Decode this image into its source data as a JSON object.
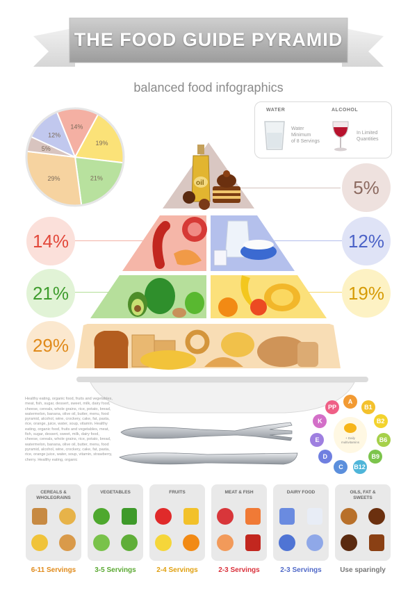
{
  "header": {
    "title": "THE FOOD GUIDE PYRAMID",
    "subtitle": "balanced food infographics"
  },
  "colors": {
    "cereals": "#f0c98f",
    "vegetables": "#a7d98d",
    "fruits": "#f8d957",
    "meat": "#f2a49a",
    "dairy": "#a9b6e6",
    "sweets": "#cfb8b3"
  },
  "pie": {
    "slices": [
      {
        "label": "14%",
        "value": 14,
        "color": "#f4b0a3"
      },
      {
        "label": "19%",
        "value": 19,
        "color": "#fbe278"
      },
      {
        "label": "21%",
        "value": 21,
        "color": "#b8e19e"
      },
      {
        "label": "29%",
        "value": 29,
        "color": "#f6d3a0"
      },
      {
        "label": "5%",
        "value": 5,
        "color": "#d8c4bf"
      },
      {
        "label": "12%",
        "value": 12,
        "color": "#c1c8ee"
      }
    ]
  },
  "water_alcohol": {
    "water_label": "WATER",
    "water_note_1": "Water",
    "water_note_2": "Minimum",
    "water_note_3": "of 8 Servings",
    "alcohol_label": "ALCOHOL",
    "alcohol_note_1": "In Limited",
    "alcohol_note_2": "Quantities"
  },
  "percentages": {
    "sweets": "5%",
    "meat": "14%",
    "dairy": "12%",
    "vegetables": "21%",
    "fruits": "19%",
    "cereals": "29%"
  },
  "pyramid": {
    "oil_label": "oil"
  },
  "blurb": "Healthy eating, organic food, fruits and vegetables, meat, fish, sugar, dessert, sweet, milk, dairy food, cheese, cereals, whole grains, rice, potato, bread, watermelon, banana, olive oil, butter, menu, food pyramid, alcohol, wine, crockery, cake, fat, pasta, rice, orange, juice, water, soup, vitamin. Healthy eating, organic food, fruits and vegetables, meat, fish, sugar, dessert, sweet, milk, dairy food, cheese, cereals, whole grains, rice, potato, bread, watermelon, banana, olive oil, butter, menu, food pyramid, alcohol, wine, crockery, cake, fat, pasta, rice, orange juice, water, soup, vitamin, strawberry, cherry. Healthy eating, organic",
  "vitamins": {
    "center_note_1": "+ Daily",
    "center_note_2": "multivitamins",
    "items": [
      {
        "label": "A",
        "color": "#f29a33"
      },
      {
        "label": "B1",
        "color": "#f3c12d"
      },
      {
        "label": "B2",
        "color": "#f3d32d"
      },
      {
        "label": "B6",
        "color": "#a6d04a"
      },
      {
        "label": "B9",
        "color": "#7cc44c"
      },
      {
        "label": "B12",
        "color": "#4fb5d9"
      },
      {
        "label": "C",
        "color": "#5b8fdc"
      },
      {
        "label": "D",
        "color": "#6f7fe0"
      },
      {
        "label": "E",
        "color": "#9e7fe0"
      },
      {
        "label": "K",
        "color": "#d36fc8"
      },
      {
        "label": "PP",
        "color": "#ef5f86"
      }
    ]
  },
  "groups": [
    {
      "title": "CEREALS &\nWHOLEGRAINS",
      "servings": "6-11 Servings",
      "color": "#e08a1a"
    },
    {
      "title": "VEGETABLES",
      "servings": "3-5 Servings",
      "color": "#5aa832"
    },
    {
      "title": "FRUITS",
      "servings": "2-4 Servings",
      "color": "#e0a010"
    },
    {
      "title": "MEAT  & FISH",
      "servings": "2-3 Servings",
      "color": "#d9303a"
    },
    {
      "title": "DAIRY FOOD",
      "servings": "2-3 Servings",
      "color": "#5069c8"
    },
    {
      "title": "OILS, FAT &\nSWEETS",
      "servings": "Use sparingly",
      "color": "#777777"
    }
  ]
}
